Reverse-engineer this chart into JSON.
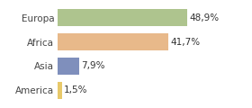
{
  "categories": [
    "Europa",
    "Africa",
    "Asia",
    "America"
  ],
  "values": [
    48.9,
    41.7,
    7.9,
    1.5
  ],
  "labels": [
    "48,9%",
    "41,7%",
    "7,9%",
    "1,5%"
  ],
  "bar_colors": [
    "#aec48e",
    "#e8b98a",
    "#7f8fbc",
    "#e8c96a"
  ],
  "background_color": "#ffffff",
  "xlim": [
    0,
    62
  ],
  "bar_height": 0.72,
  "label_fontsize": 7.5,
  "tick_fontsize": 7.5
}
